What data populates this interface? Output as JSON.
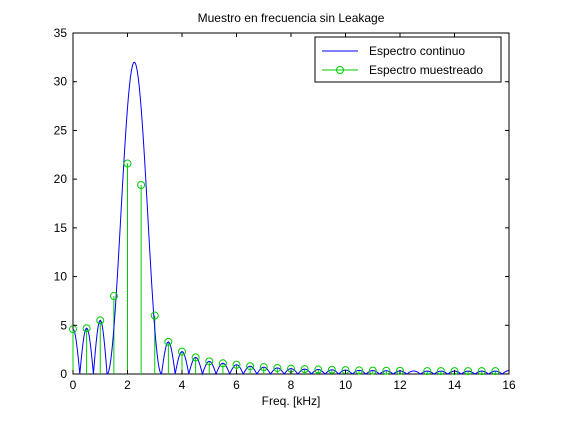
{
  "chart_data": {
    "type": "line",
    "title": "Muestro en frecuencia sin Leakage",
    "xlabel": "Freq. [kHz]",
    "ylabel": "",
    "xlim": [
      0,
      16
    ],
    "ylim": [
      0,
      35
    ],
    "xticks": [
      0,
      2,
      4,
      6,
      8,
      10,
      12,
      14,
      16
    ],
    "yticks": [
      0,
      5,
      10,
      15,
      20,
      25,
      30,
      35
    ],
    "grid": false,
    "legend_position": "top-right",
    "series": [
      {
        "name": "Espectro continuo",
        "color": "#0000ff",
        "style": "line",
        "main_lobe_center": 2.25,
        "main_lobe_peak": 32,
        "sidelobe_spacing": 0.5,
        "sidelobe_peaks": [
          {
            "x": 0.0,
            "y": 4.6
          },
          {
            "x": 0.5,
            "y": 4.7
          },
          {
            "x": 1.0,
            "y": 5.5
          },
          {
            "x": 1.5,
            "y": 8.0
          },
          {
            "x": 3.0,
            "y": 6.0
          },
          {
            "x": 3.5,
            "y": 3.3
          },
          {
            "x": 4.0,
            "y": 2.3
          },
          {
            "x": 4.5,
            "y": 1.7
          },
          {
            "x": 5.0,
            "y": 1.3
          },
          {
            "x": 5.5,
            "y": 1.1
          },
          {
            "x": 6.0,
            "y": 0.95
          },
          {
            "x": 6.5,
            "y": 0.8
          },
          {
            "x": 7.0,
            "y": 0.7
          },
          {
            "x": 7.5,
            "y": 0.62
          },
          {
            "x": 8.0,
            "y": 0.55
          },
          {
            "x": 8.5,
            "y": 0.5
          },
          {
            "x": 9.0,
            "y": 0.46
          },
          {
            "x": 9.5,
            "y": 0.43
          },
          {
            "x": 10.0,
            "y": 0.4
          },
          {
            "x": 10.5,
            "y": 0.37
          },
          {
            "x": 11.0,
            "y": 0.35
          },
          {
            "x": 11.5,
            "y": 0.33
          },
          {
            "x": 12.0,
            "y": 0.32
          },
          {
            "x": 12.5,
            "y": 0.31
          },
          {
            "x": 13.0,
            "y": 0.3
          },
          {
            "x": 13.5,
            "y": 0.3
          },
          {
            "x": 14.0,
            "y": 0.3
          },
          {
            "x": 14.5,
            "y": 0.3
          },
          {
            "x": 15.0,
            "y": 0.3
          },
          {
            "x": 15.5,
            "y": 0.3
          },
          {
            "x": 16.0,
            "y": 0.35
          }
        ]
      },
      {
        "name": "Espectro muestreado",
        "color": "#00cc00",
        "style": "stem",
        "marker": "circle",
        "x": [
          0,
          0.5,
          1.0,
          1.5,
          2.0,
          2.5,
          3.0,
          3.5,
          4.0,
          4.5,
          5.0,
          5.5,
          6.0,
          6.5,
          7.0,
          7.5,
          8.0,
          8.5,
          9.0,
          9.5,
          10.0,
          10.5,
          11.0,
          11.5,
          12.0,
          13.0,
          13.5,
          14.0,
          14.5,
          15.0,
          15.5
        ],
        "y": [
          4.6,
          4.7,
          5.5,
          8.0,
          21.6,
          19.4,
          6.0,
          3.3,
          2.3,
          1.7,
          1.3,
          1.1,
          0.95,
          0.8,
          0.7,
          0.62,
          0.55,
          0.5,
          0.46,
          0.43,
          0.4,
          0.37,
          0.35,
          0.33,
          0.32,
          0.3,
          0.3,
          0.3,
          0.3,
          0.3,
          0.3
        ]
      }
    ]
  }
}
